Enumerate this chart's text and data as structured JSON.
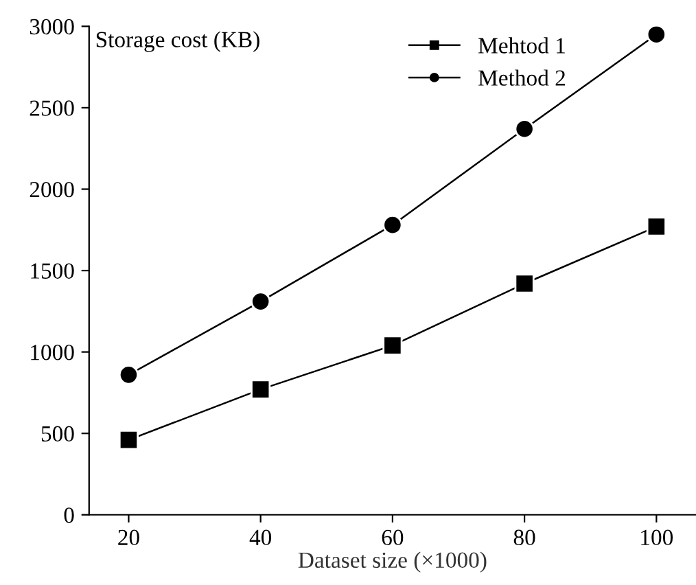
{
  "chart_data": {
    "type": "line",
    "ylabel": "Storage cost (KB)",
    "xlabel": "Dataset size (×1000)",
    "x": [
      20,
      40,
      60,
      80,
      100
    ],
    "series": [
      {
        "name": "Mehtod 1",
        "color": "#000000",
        "marker": "square",
        "values": [
          460,
          770,
          1040,
          1420,
          1770
        ]
      },
      {
        "name": "Method 2",
        "color": "#000000",
        "marker": "circle",
        "values": [
          860,
          1310,
          1780,
          2370,
          2950
        ]
      }
    ],
    "xlim": [
      14,
      106
    ],
    "xticks": [
      20,
      40,
      60,
      80,
      100
    ],
    "ylim": [
      0,
      3000
    ],
    "yticks": [
      0,
      500,
      1000,
      1500,
      2000,
      2500,
      3000
    ],
    "grid": false,
    "legend": "top right",
    "line_style": "solid"
  }
}
